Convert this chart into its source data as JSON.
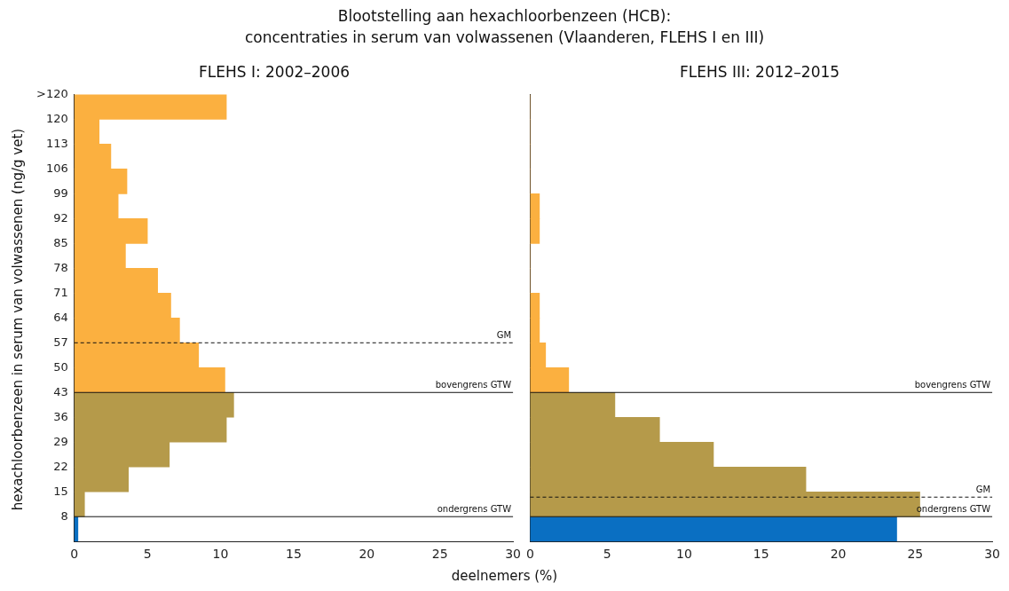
{
  "chart_data": [
    {
      "type": "histogram",
      "orientation": "horizontal",
      "title": "Blootstelling aan hexachloorbenzeen (HCB):\nconcentraties in serum van volwassenen (Vlaanderen, FLEHS I en III)",
      "subtitle": "FLEHS I: 2002–2006",
      "xlabel": "deelnemers (%)",
      "ylabel": "hexachloorbenzeen in serum van volwassenen (ng/g vet)",
      "bins": [
        1,
        8,
        15,
        22,
        29,
        36,
        43,
        50,
        57,
        64,
        71,
        78,
        85,
        92,
        99,
        106,
        113,
        120,
        127
      ],
      "values": [
        0.25,
        0.7,
        3.7,
        6.5,
        10.4,
        10.9,
        10.3,
        8.5,
        7.2,
        6.6,
        5.7,
        3.5,
        5.0,
        3.0,
        3.6,
        2.5,
        1.7,
        10.4
      ],
      "colors": [
        "#0a6fc2",
        "#b59a4a",
        "#b59a4a",
        "#b59a4a",
        "#b59a4a",
        "#b59a4a",
        "#fbb040",
        "#fbb040",
        "#fbb040",
        "#fbb040",
        "#fbb040",
        "#fbb040",
        "#fbb040",
        "#fbb040",
        "#fbb040",
        "#fbb040",
        "#fbb040",
        "#fbb040"
      ],
      "xlim": [
        0,
        30
      ],
      "xticks": [
        0,
        5,
        10,
        15,
        20,
        25,
        30
      ],
      "ylim": [
        1,
        127
      ],
      "yticks": [
        8,
        15,
        22,
        29,
        36,
        43,
        50,
        57,
        64,
        71,
        78,
        85,
        92,
        99,
        106,
        113,
        120,
        {
          "value": 127,
          "label": ">120"
        }
      ],
      "ref_lines": [
        {
          "axis": "y",
          "value": 57,
          "label": "GM",
          "line_style": "dashed"
        },
        {
          "axis": "y",
          "value": 43,
          "label": "bovengrens GTW",
          "line_style": "solid"
        },
        {
          "axis": "y",
          "value": 8,
          "label": "ondergrens GTW",
          "line_style": "solid"
        }
      ],
      "grid": false,
      "legend": false
    },
    {
      "type": "histogram",
      "orientation": "horizontal",
      "subtitle": "FLEHS III: 2012–2015",
      "bins": [
        1,
        8,
        15,
        22,
        29,
        36,
        43,
        50,
        57,
        64,
        71,
        78,
        85,
        92,
        99,
        106,
        113,
        120,
        127
      ],
      "values": [
        23.8,
        25.3,
        17.9,
        11.9,
        8.4,
        5.5,
        2.5,
        1.0,
        0.6,
        0.6,
        0,
        0,
        0.6,
        0.6,
        0,
        0,
        0,
        0
      ],
      "colors": [
        "#0a6fc2",
        "#b59a4a",
        "#b59a4a",
        "#b59a4a",
        "#b59a4a",
        "#b59a4a",
        "#fbb040",
        "#fbb040",
        "#fbb040",
        "#fbb040",
        "#fbb040",
        "#fbb040",
        "#fbb040",
        "#fbb040",
        "#fbb040",
        "#fbb040",
        "#fbb040",
        "#fbb040"
      ],
      "xlim": [
        0,
        30
      ],
      "xticks": [
        0,
        5,
        10,
        15,
        20,
        25,
        30
      ],
      "ylim": [
        1,
        127
      ],
      "tick_labels": "x",
      "ref_lines": [
        {
          "axis": "y",
          "value": 43,
          "label": "bovengrens GTW",
          "line_style": "solid"
        },
        {
          "axis": "y",
          "value": 13.5,
          "label": "GM",
          "line_style": "dashed"
        },
        {
          "axis": "y",
          "value": 8,
          "label": "ondergrens GTW",
          "line_style": "solid"
        }
      ],
      "grid": false,
      "legend": false
    }
  ]
}
